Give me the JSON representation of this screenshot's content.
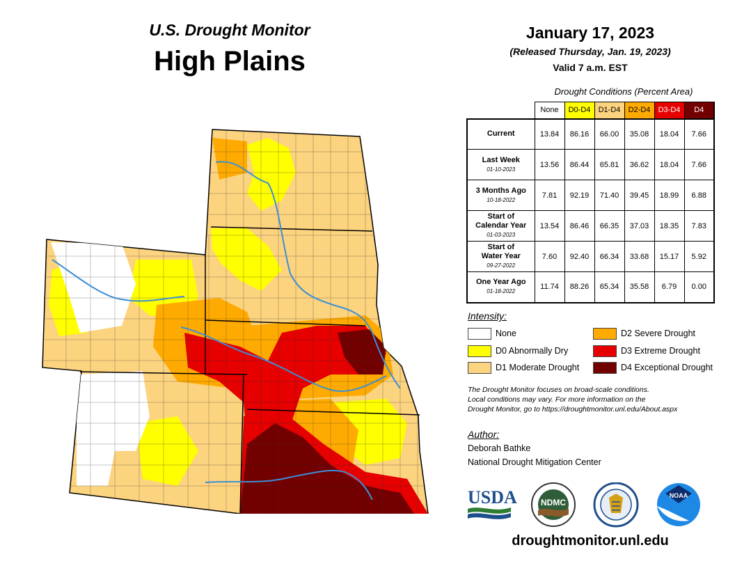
{
  "header": {
    "subtitle": "U.S. Drought Monitor",
    "region": "High Plains"
  },
  "info": {
    "date": "January 17, 2023",
    "released": "(Released Thursday, Jan. 19, 2023)",
    "valid": "Valid 7 a.m. EST"
  },
  "table": {
    "caption": "Drought Conditions (Percent Area)",
    "columns": [
      {
        "label": "None",
        "color": "#ffffff",
        "text": "#000000"
      },
      {
        "label": "D0-D4",
        "color": "#ffff00",
        "text": "#000000"
      },
      {
        "label": "D1-D4",
        "color": "#fcd37f",
        "text": "#000000"
      },
      {
        "label": "D2-D4",
        "color": "#ffaa00",
        "text": "#000000"
      },
      {
        "label": "D3-D4",
        "color": "#e60000",
        "text": "#ffffff"
      },
      {
        "label": "D4",
        "color": "#730000",
        "text": "#ffffff"
      }
    ],
    "rows": [
      {
        "label": "Current",
        "label2": "",
        "date": "",
        "values": [
          "13.84",
          "86.16",
          "66.00",
          "35.08",
          "18.04",
          "7.66"
        ]
      },
      {
        "label": "Last Week",
        "label2": "",
        "date": "01-10-2023",
        "values": [
          "13.56",
          "86.44",
          "65.81",
          "36.62",
          "18.04",
          "7.66"
        ]
      },
      {
        "label": "3 Months Ago",
        "label2": "",
        "date": "10-18-2022",
        "values": [
          "7.81",
          "92.19",
          "71.40",
          "39.45",
          "18.99",
          "6.88"
        ]
      },
      {
        "label": "Start of",
        "label2": "Calendar Year",
        "date": "01-03-2023",
        "values": [
          "13.54",
          "86.46",
          "66.35",
          "37.03",
          "18.35",
          "7.83"
        ]
      },
      {
        "label": "Start of",
        "label2": "Water Year",
        "date": "09-27-2022",
        "values": [
          "7.60",
          "92.40",
          "66.34",
          "33.68",
          "15.17",
          "5.92"
        ]
      },
      {
        "label": "One Year Ago",
        "label2": "",
        "date": "01-18-2022",
        "values": [
          "11.74",
          "88.26",
          "65.34",
          "35.58",
          "6.79",
          "0.00"
        ]
      }
    ]
  },
  "legend": {
    "heading": "Intensity:",
    "items": [
      {
        "label": "None",
        "color": "#ffffff"
      },
      {
        "label": "D0 Abnormally Dry",
        "color": "#ffff00"
      },
      {
        "label": "D1 Moderate Drought",
        "color": "#fcd37f"
      },
      {
        "label": "D2 Severe Drought",
        "color": "#ffaa00"
      },
      {
        "label": "D3 Extreme Drought",
        "color": "#e60000"
      },
      {
        "label": "D4 Exceptional Drought",
        "color": "#730000"
      }
    ]
  },
  "note": {
    "line1": "The Drought Monitor focuses on broad-scale conditions.",
    "line2": "Local conditions may vary. For more information on the",
    "line3": "Drought Monitor, go to https://droughtmonitor.unl.edu/About.aspx"
  },
  "author": {
    "heading": "Author:",
    "name": "Deborah Bathke",
    "org": "National Drought Mitigation Center"
  },
  "logos": {
    "usda": "USDA",
    "ndmc": "NDMC",
    "noaa": "NOAA"
  },
  "footer": {
    "url": "droughtmonitor.unl.edu"
  }
}
